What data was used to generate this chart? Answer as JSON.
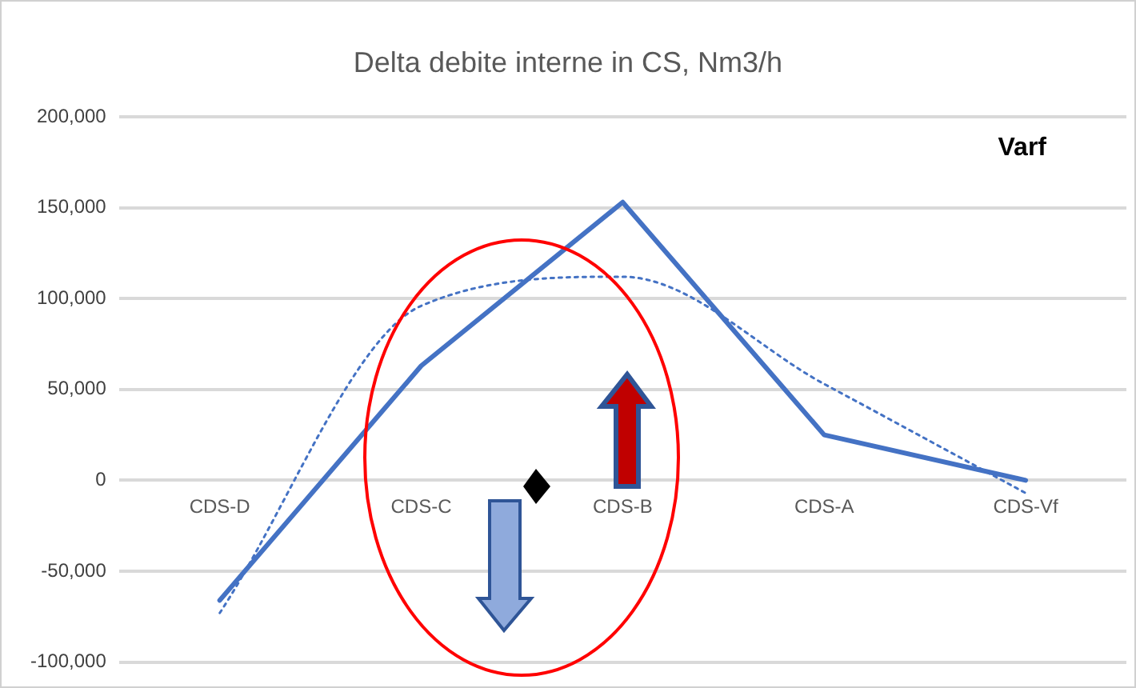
{
  "chart_data": {
    "type": "line",
    "title": "Delta debite interne in CS, Nm3/h",
    "annotations": [
      "Varf"
    ],
    "categories": [
      "CDS-D",
      "CDS-C",
      "CDS-B",
      "CDS-A",
      "CDS-Vf"
    ],
    "series": [
      {
        "color": "#4472c4",
        "values": [
          -66000,
          63000,
          153000,
          25000,
          0
        ],
        "line_style": "solid"
      },
      {
        "color": "#4472c4",
        "line_style": "dotted",
        "values": [
          -73000,
          96000,
          112000,
          53000,
          -7000
        ]
      }
    ],
    "ylim": [
      -100000,
      200000
    ],
    "yticks": [
      {
        "value": -100000,
        "label": "-100,000"
      },
      {
        "value": -50000,
        "label": "-50,000"
      },
      {
        "value": 0,
        "label": "0"
      },
      {
        "value": 50000,
        "label": "50,000"
      },
      {
        "value": 100000,
        "label": "100,000"
      },
      {
        "value": 150000,
        "label": "150,000"
      },
      {
        "value": 200000,
        "label": "200,000"
      }
    ],
    "grid": "y",
    "legend": false,
    "marker": "none"
  }
}
